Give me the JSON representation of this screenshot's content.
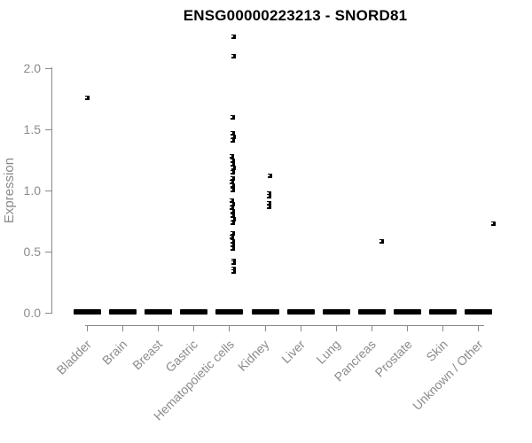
{
  "chart_data": {
    "type": "scatter",
    "title": "ENSG00000223213 - SNORD81",
    "xlabel": "",
    "ylabel": "Expression",
    "ylim": [
      0,
      2.3
    ],
    "grid": false,
    "legend": "none",
    "axis_color": "#898989",
    "label_color": "#8b8b8b",
    "point_color": "#000000",
    "y_ticks": [
      "0.0",
      "0.5",
      "1.0",
      "1.5",
      "2.0"
    ],
    "categories": [
      "Bladder",
      "Brain",
      "Breast",
      "Gastric",
      "Hematopoietic cells",
      "Kidney",
      "Liver",
      "Lung",
      "Pancreas",
      "Prostate",
      "Skin",
      "Unknown / Other"
    ],
    "zero_cluster_note": "every category has a dense cluster of points at expression 0, rendered as a thick black bar",
    "points": [
      {
        "category": "Bladder",
        "values": [
          1.76
        ],
        "dx": [
          0
        ]
      },
      {
        "category": "Hematopoietic cells",
        "values": [
          2.26,
          2.1,
          1.6,
          1.47,
          1.44,
          1.41,
          1.28,
          1.25,
          1.22,
          1.19,
          1.15,
          1.1,
          1.07,
          1.04,
          1.01,
          0.92,
          0.89,
          0.86,
          0.83,
          0.8,
          0.77,
          0.74,
          0.65,
          0.62,
          0.59,
          0.56,
          0.53,
          0.43,
          0.41,
          0.36,
          0.34
        ],
        "dx": [
          4,
          4,
          3,
          3,
          4,
          3,
          2,
          3,
          3,
          4,
          3,
          3,
          2,
          3,
          3,
          2,
          3,
          2,
          3,
          3,
          4,
          3,
          3,
          2,
          3,
          3,
          3,
          4,
          4,
          4,
          4
        ]
      },
      {
        "category": "Kidney",
        "values": [
          1.12,
          0.98,
          0.96,
          0.9,
          0.87
        ],
        "dx": [
          5,
          4,
          4,
          4,
          4
        ]
      },
      {
        "category": "Pancreas",
        "values": [
          0.59
        ],
        "dx": [
          10
        ]
      },
      {
        "category": "Unknown / Other",
        "values": [
          0.73
        ],
        "dx": [
          16
        ]
      }
    ]
  }
}
